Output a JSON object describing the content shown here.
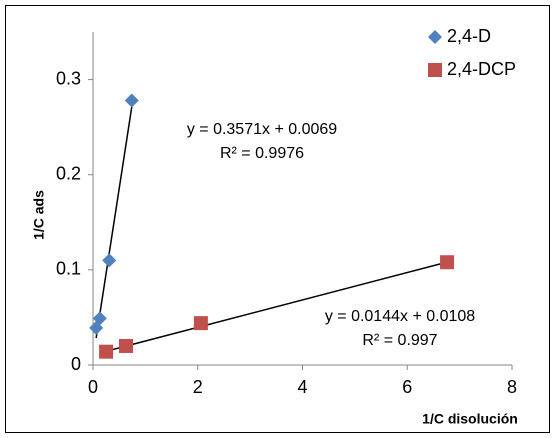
{
  "chart_data": {
    "type": "scatter",
    "x_label": "1/C disolución",
    "y_label": "1/C ads",
    "xlim": [
      0,
      8
    ],
    "xticks": [
      0,
      2,
      4,
      6,
      8
    ],
    "ylim": [
      0,
      0.35
    ],
    "yticks": [
      0,
      0.1,
      0.2,
      0.3
    ],
    "grid": false,
    "legend": "top-right",
    "series": [
      {
        "name": "2,4-D",
        "color": "#4f81bd",
        "marker": "diamond",
        "x": [
          0.06,
          0.13,
          0.31,
          0.74
        ],
        "values": [
          0.039,
          0.049,
          0.11,
          0.278
        ],
        "trendline": {
          "equation": "y = 0.3571x + 0.0069",
          "r2": "R² = 0.9976",
          "slope": 0.3571,
          "intercept": 0.0069
        }
      },
      {
        "name": "2,4-DCP",
        "color": "#c0504d",
        "marker": "square",
        "x": [
          0.25,
          0.63,
          2.06,
          6.76
        ],
        "values": [
          0.014,
          0.02,
          0.044,
          0.108
        ],
        "trendline": {
          "equation": "y = 0.0144x + 0.0108",
          "r2": "R² = 0.997",
          "slope": 0.0144,
          "intercept": 0.0108
        }
      }
    ]
  }
}
